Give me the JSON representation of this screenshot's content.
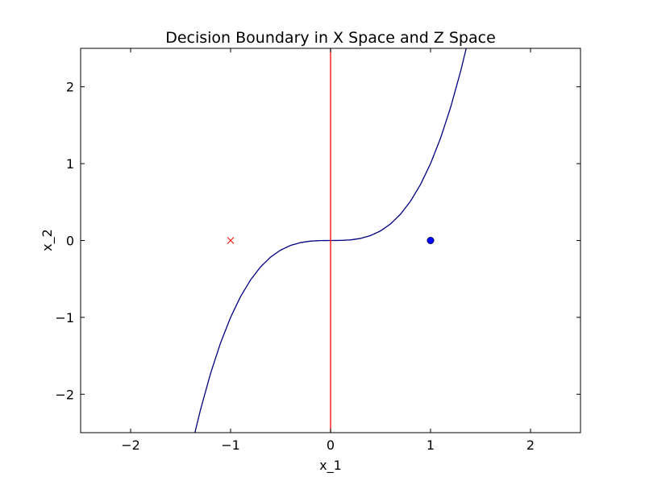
{
  "chart_data": {
    "type": "line",
    "title": "Decision Boundary in X Space and Z Space",
    "xlabel": "x_1",
    "ylabel": "x_2",
    "xlim": [
      -2.5,
      2.5
    ],
    "ylim": [
      -2.5,
      2.5
    ],
    "xticks": [
      -2,
      -1,
      0,
      1,
      2
    ],
    "yticks": [
      -2,
      -1,
      0,
      1,
      2
    ],
    "xtick_labels": [
      "−2",
      "−1",
      "0",
      "1",
      "2"
    ],
    "ytick_labels": [
      "−2",
      "−1",
      "0",
      "1",
      "2"
    ],
    "grid": false,
    "series": [
      {
        "kind": "curve",
        "color": "#000080",
        "x": [
          -1.357,
          -1.3,
          -1.2,
          -1.1,
          -1.0,
          -0.9,
          -0.8,
          -0.7,
          -0.6,
          -0.5,
          -0.4,
          -0.3,
          -0.2,
          -0.1,
          0.0,
          0.1,
          0.2,
          0.3,
          0.4,
          0.5,
          0.6,
          0.7,
          0.8,
          0.9,
          1.0,
          1.1,
          1.2,
          1.3,
          1.357
        ],
        "y": [
          -2.5,
          -2.197,
          -1.728,
          -1.331,
          -1.0,
          -0.729,
          -0.512,
          -0.343,
          -0.216,
          -0.125,
          -0.064,
          -0.027,
          -0.008,
          -0.001,
          0.0,
          0.001,
          0.008,
          0.027,
          0.064,
          0.125,
          0.216,
          0.343,
          0.512,
          0.729,
          1.0,
          1.331,
          1.728,
          2.197,
          2.5
        ]
      },
      {
        "kind": "vline",
        "color": "#ff0000",
        "x": [
          0,
          0
        ],
        "y": [
          -2.5,
          2.5
        ]
      },
      {
        "kind": "marker-x",
        "color": "#ff0000",
        "x": [
          -1
        ],
        "y": [
          0
        ]
      },
      {
        "kind": "marker-dot",
        "color": "#0000ff",
        "x": [
          1
        ],
        "y": [
          0
        ]
      }
    ]
  }
}
